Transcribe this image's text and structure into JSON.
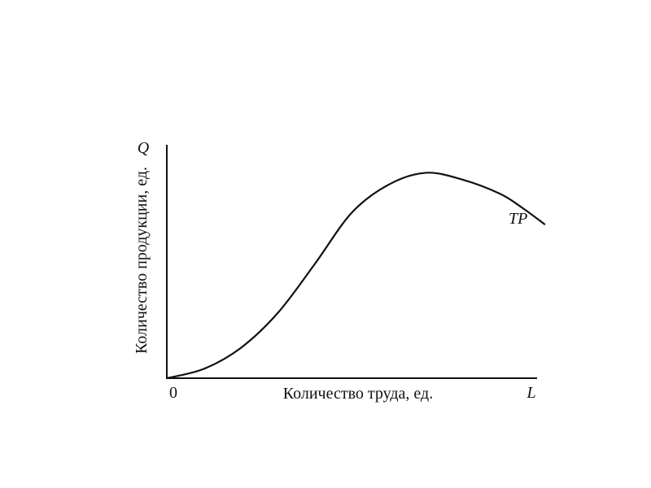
{
  "chart_data": {
    "type": "line",
    "title": "",
    "xlabel": "Количество труда, ед.",
    "ylabel": "Количество продукции, ед.",
    "x_axis_symbol": "L",
    "y_axis_symbol": "Q",
    "origin_label": "0",
    "grid": false,
    "xlim": [
      0,
      10
    ],
    "ylim": [
      0,
      10
    ],
    "series": [
      {
        "name": "TP",
        "x": [
          0,
          1,
          2,
          3,
          4,
          5,
          6,
          7,
          8,
          9,
          9.6,
          10.2
        ],
        "y": [
          0,
          0.4,
          1.3,
          2.8,
          4.9,
          7.1,
          8.3,
          8.8,
          8.5,
          7.9,
          7.3,
          6.6
        ]
      }
    ],
    "colors": {
      "axis": "#111111",
      "curve": "#111111"
    }
  }
}
